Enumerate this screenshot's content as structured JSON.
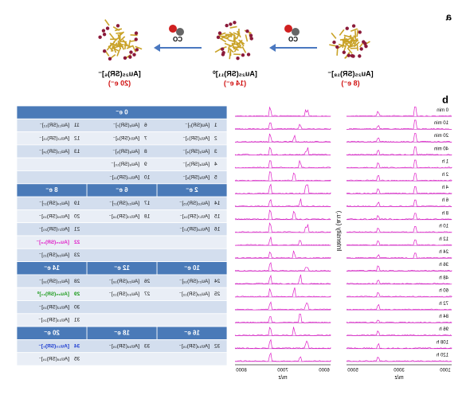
{
  "panel_a": {
    "label": "a",
    "reagent": "CO",
    "clusters": [
      {
        "formula": "[Au₂₅(SR)₁₈]⁻",
        "electrons": "(8 e⁻)"
      },
      {
        "formula": "[Au₂₅(SR)₁₁]⁰",
        "electrons": "(14 e⁻)"
      },
      {
        "formula": "[Au₂₅(SR)₆]⁻",
        "electrons": "(20 e⁻)"
      }
    ]
  },
  "panel_b": {
    "label": "b",
    "x_label": "m/z",
    "y_label": "Intensity (a.u.)",
    "left_ticks": [
      "1000",
      "3000",
      "5000"
    ],
    "right_ticks": [
      "6000",
      "7000",
      "8000"
    ],
    "times": [
      "0 min",
      "10 min",
      "20 min",
      "40 min",
      "1 h",
      "2 h",
      "4 h",
      "6 h",
      "8 h",
      "10 h",
      "12 h",
      "24 h",
      "36 h",
      "48 h",
      "60 h",
      "72 h",
      "84 h",
      "96 h",
      "108 h",
      "120 h"
    ]
  },
  "table": {
    "sections": [
      {
        "groups": [
          {
            "header": "0 e⁻",
            "entries": [
              {
                "no": "1",
                "formula": "[Au(SR)₂]⁻"
              },
              {
                "no": "2",
                "formula": "[Au₂(SR)₃]⁻"
              },
              {
                "no": "3",
                "formula": "[Au₃(SR)₄]⁻"
              },
              {
                "no": "4",
                "formula": "[Au₄(SR)₅]⁻"
              },
              {
                "no": "5",
                "formula": "[Au₅(SR)₆]⁻"
              }
            ]
          },
          {
            "entries": [
              {
                "no": "6",
                "formula": "[Au₆(SR)₇]⁻"
              },
              {
                "no": "7",
                "formula": "[Au₇(SR)₈]⁻"
              },
              {
                "no": "8",
                "formula": "[Au₈(SR)₉]⁻"
              },
              {
                "no": "9",
                "formula": "[Au₉(SR)₁₀]⁻"
              },
              {
                "no": "10",
                "formula": "[Au₁₀(SR)₁₁]⁻"
              }
            ]
          },
          {
            "entries": [
              {
                "no": "11",
                "formula": "[Au₁₁(SR)₁₂]⁻"
              },
              {
                "no": "12",
                "formula": "[Au₁₂(SR)₁₃]⁻"
              },
              {
                "no": "13",
                "formula": "[Au₁₃(SR)₁₄]⁻"
              }
            ]
          }
        ]
      },
      {
        "groups": [
          {
            "header": "2 e⁻",
            "entries": [
              {
                "no": "14",
                "formula": "[Au₁₆(SR)₁₅]⁻"
              },
              {
                "no": "15",
                "formula": "[Au₁₇(SR)₁₆]⁻"
              },
              {
                "no": "16",
                "formula": "[Au₁₈(SR)₁₇]⁻"
              }
            ]
          },
          {
            "header": "6 e⁻",
            "entries": [
              {
                "no": "17",
                "formula": "[Au₂₂(SR)₁₇]⁻"
              },
              {
                "no": "18",
                "formula": "[Au₂₃(SR)₁₈]⁻"
              }
            ]
          },
          {
            "header": "8 e⁻",
            "entries": [
              {
                "no": "19",
                "formula": "[Au₂₄(SR)₁₇]⁻"
              },
              {
                "no": "20",
                "formula": "[Au₂₆(SR)₁₉]⁻"
              },
              {
                "no": "21",
                "formula": "[Au₂₇(SR)₂₀]⁻"
              },
              {
                "no": "22",
                "formula": "[Au₂₅(SR)₁₈]⁻",
                "color": "#e020c8"
              },
              {
                "no": "23",
                "formula": "[Au₂₈(SR)₂₁]⁻"
              }
            ]
          }
        ]
      },
      {
        "groups": [
          {
            "header": "10 e⁻",
            "entries": [
              {
                "no": "24",
                "formula": "[Au₂₇(SR)₁₈]⁻"
              },
              {
                "no": "25",
                "formula": "[Au₂₈(SR)₁₉]⁻"
              }
            ]
          },
          {
            "header": "12 e⁻",
            "entries": [
              {
                "no": "26",
                "formula": "[Au₂₉(SR)₁₈]⁻"
              },
              {
                "no": "27",
                "formula": "[Au₃₀(SR)₁₉]⁻"
              }
            ]
          },
          {
            "header": "14 e⁻",
            "entries": [
              {
                "no": "28",
                "formula": "[Au₃₁(SR)₁₈]⁻"
              },
              {
                "no": "29",
                "formula": "[Au₂₅(SR)₁₁]⁰",
                "color": "#1a9a1a"
              },
              {
                "no": "30",
                "formula": "[Au₃₂(SR)₁₉]⁻"
              },
              {
                "no": "31",
                "formula": "[Au₃₃(SR)₂₀]⁻"
              }
            ]
          }
        ]
      },
      {
        "groups": [
          {
            "header": "16 e⁻",
            "entries": [
              {
                "no": "32",
                "formula": "[Au₃₄(SR)₁₉]⁻"
              }
            ]
          },
          {
            "header": "18 e⁻",
            "entries": [
              {
                "no": "33",
                "formula": "[Au₃₆(SR)₁₉]⁻"
              }
            ]
          },
          {
            "header": "20 e⁻",
            "entries": [
              {
                "no": "34",
                "formula": "[Au₂₅(SR)₆]⁻",
                "color": "#1a3ad0"
              },
              {
                "no": "35",
                "formula": "[Au₃₈(SR)₁₉]⁻"
              }
            ]
          }
        ]
      }
    ]
  }
}
